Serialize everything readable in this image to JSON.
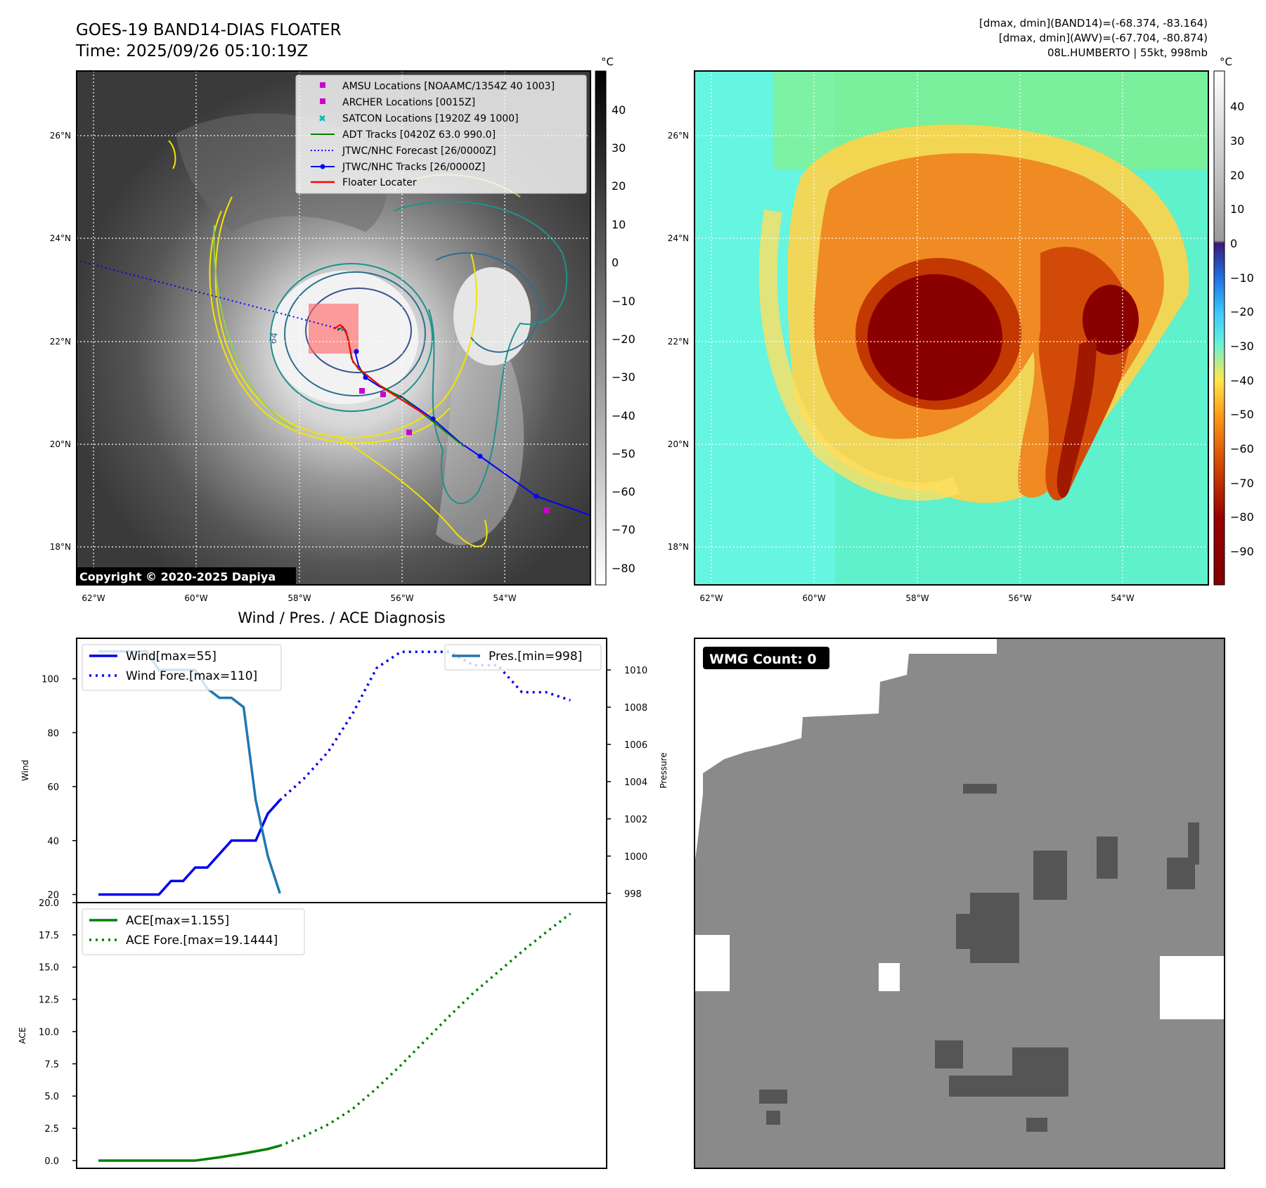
{
  "header": {
    "title": "GOES-19 BAND14-DIAS FLOATER",
    "time": "Time: 2025/09/26 05:10:19Z",
    "stats_band14": "[dmax, dmin](BAND14)=(-68.374, -83.164)",
    "stats_awv": "[dmax, dmin](AWV)=(-67.704, -80.874)",
    "storm": "08L.HUMBERTO | 55kt, 998mb"
  },
  "map": {
    "lat_labels": [
      "26°N",
      "24°N",
      "22°N",
      "20°N",
      "18°N"
    ],
    "lon_labels": [
      "62°W",
      "60°W",
      "58°W",
      "56°W",
      "54°W"
    ],
    "contour_label": "64",
    "copyright": "Copyright © 2020-2025 Dapiya",
    "legend": [
      {
        "label": "AMSU Locations [NOAAMC/1354Z 40 1003]",
        "color": "#cc00cc",
        "marker": "square"
      },
      {
        "label": "ARCHER Locations [0015Z]",
        "color": "#cc00cc",
        "marker": "square"
      },
      {
        "label": "SATCON Locations [1920Z 49 1000]",
        "color": "#00bbbb",
        "marker": "x"
      },
      {
        "label": "ADT Tracks [0420Z 63.0 990.0]",
        "color": "#008000",
        "marker": "line"
      },
      {
        "label": "JTWC/NHC Forecast [26/0000Z]",
        "color": "#0000ff",
        "marker": "dotted"
      },
      {
        "label": "JTWC/NHC Tracks [26/0000Z]",
        "color": "#0000ff",
        "marker": "line-dot"
      },
      {
        "label": "Floater Locater",
        "color": "#ff0000",
        "marker": "line"
      }
    ]
  },
  "colorbar_gray": {
    "unit": "°C",
    "ticks": [
      "40",
      "30",
      "20",
      "10",
      "0",
      "−10",
      "−20",
      "−30",
      "−40",
      "−50",
      "−60",
      "−70",
      "−80"
    ]
  },
  "colorbar_color": {
    "unit": "°C",
    "ticks": [
      "40",
      "30",
      "20",
      "10",
      "0",
      "−10",
      "−20",
      "−30",
      "−40",
      "−50",
      "−60",
      "−70",
      "−80",
      "−90"
    ]
  },
  "wmg": {
    "badge": "WMG Count: 0"
  },
  "chart_data": [
    {
      "type": "line",
      "title": "Wind / Pres. / ACE Diagnosis",
      "ylabel": "Wind",
      "y2label": "Pressure",
      "ylim": [
        17,
        115
      ],
      "y2lim": [
        997.5,
        1011.7
      ],
      "xlim": [
        -0.9,
        21
      ],
      "yticks": [
        "100",
        "80",
        "60",
        "40",
        "20"
      ],
      "y2ticks": [
        "1010",
        "1008",
        "1006",
        "1004",
        "1002",
        "1000",
        "998"
      ],
      "series": [
        {
          "name": "Wind[max=55]",
          "color": "#0000ee",
          "style": "solid",
          "x": [
            0,
            1,
            2,
            2.5,
            3,
            3.5,
            4,
            4.5,
            5,
            5.5,
            6,
            6.5,
            7,
            7.5
          ],
          "y": [
            20,
            20,
            20,
            20,
            25,
            25,
            30,
            30,
            35,
            40,
            40,
            40,
            50,
            55
          ]
        },
        {
          "name": "Wind Fore.[max=110]",
          "color": "#0000ee",
          "style": "dotted",
          "x": [
            7.5,
            8.5,
            9.5,
            10.5,
            11.5,
            12.5,
            13.5,
            14.5,
            15.5,
            16.5,
            17.5,
            18.5,
            19.5
          ],
          "y": [
            55,
            63,
            73,
            87,
            104,
            110,
            110,
            110,
            105,
            105,
            95,
            95,
            92
          ]
        },
        {
          "name": "Pres.[min=998]",
          "color": "#1f77b4",
          "style": "solid",
          "axis": "right",
          "x": [
            0,
            1,
            2,
            2.5,
            3,
            3.5,
            4,
            4.5,
            5,
            5.5,
            6,
            6.5,
            7,
            7.5
          ],
          "y": [
            1011,
            1011,
            1011,
            1010,
            1010,
            1010,
            1010,
            1009,
            1008.5,
            1008.5,
            1008,
            1003,
            1000,
            998
          ]
        }
      ]
    },
    {
      "type": "line",
      "ylabel": "ACE",
      "ylim": [
        -0.6,
        20
      ],
      "xlim": [
        -0.9,
        21
      ],
      "yticks": [
        "20.0",
        "17.5",
        "15.0",
        "12.5",
        "10.0",
        "7.5",
        "5.0",
        "2.5",
        "0.0"
      ],
      "series": [
        {
          "name": "ACE[max=1.155]",
          "color": "#007f00",
          "style": "solid",
          "x": [
            0,
            1,
            2,
            3,
            4,
            5,
            6,
            7,
            7.5
          ],
          "y": [
            0,
            0,
            0,
            0,
            0,
            0.25,
            0.55,
            0.9,
            1.155
          ]
        },
        {
          "name": "ACE Fore.[max=19.1444]",
          "color": "#007f00",
          "style": "dotted",
          "x": [
            7.5,
            8.5,
            9.5,
            10.5,
            11.5,
            12.5,
            13.5,
            14.5,
            15.5,
            16.5,
            17.5,
            18.5,
            19.5
          ],
          "y": [
            1.155,
            1.9,
            2.8,
            4.0,
            5.6,
            7.4,
            9.3,
            11.2,
            13.0,
            14.6,
            16.2,
            17.7,
            19.1444
          ]
        }
      ]
    }
  ]
}
